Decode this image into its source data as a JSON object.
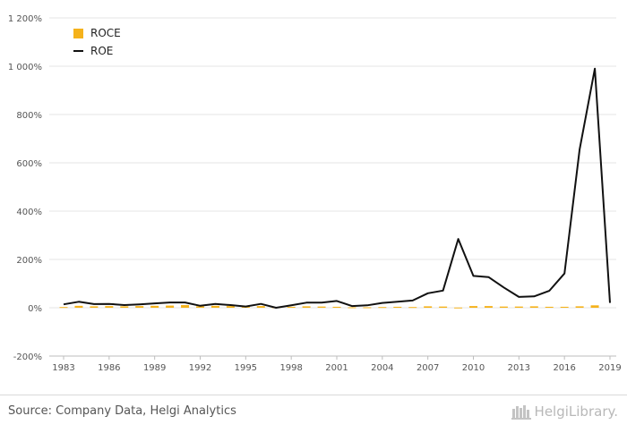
{
  "chart_data": {
    "type": "bar+line",
    "x": [
      "1983",
      "1984",
      "1985",
      "1986",
      "1987",
      "1988",
      "1989",
      "1990",
      "1991",
      "1992",
      "1993",
      "1994",
      "1995",
      "1996",
      "1997",
      "1998",
      "1999",
      "2000",
      "2001",
      "2002",
      "2003",
      "2004",
      "2005",
      "2006",
      "2007",
      "2008",
      "2009",
      "2010",
      "2011",
      "2012",
      "2013",
      "2014",
      "2015",
      "2016",
      "2017",
      "2018",
      "2019"
    ],
    "x_tick_labels": [
      "1983",
      "1986",
      "1989",
      "1992",
      "1995",
      "1998",
      "2001",
      "2004",
      "2007",
      "2010",
      "2013",
      "2016",
      "2019"
    ],
    "y_tick_labels": [
      "1 200%",
      "1 000%",
      "800%",
      "600%",
      "400%",
      "200%",
      "0%",
      "-200%"
    ],
    "ylim": [
      -200,
      1200
    ],
    "y_ticks": [
      -200,
      0,
      200,
      400,
      600,
      800,
      1000,
      1200
    ],
    "grid": true,
    "legend_position": "top-left",
    "series": [
      {
        "name": "ROCE",
        "kind": "bar",
        "color": "#f5b21b",
        "values": [
          3,
          8,
          6,
          7,
          6,
          7,
          8,
          9,
          11,
          6,
          8,
          7,
          5,
          7,
          2,
          4,
          6,
          5,
          4,
          2,
          2,
          3,
          4,
          3,
          6,
          5,
          1,
          7,
          7,
          5,
          5,
          6,
          4,
          4,
          6,
          10,
          0
        ]
      },
      {
        "name": "ROE",
        "kind": "line",
        "color": "#111111",
        "values": [
          14,
          25,
          15,
          16,
          11,
          14,
          18,
          22,
          22,
          8,
          16,
          11,
          5,
          16,
          0,
          10,
          21,
          21,
          28,
          7,
          10,
          20,
          25,
          30,
          60,
          71,
          285,
          132,
          127,
          84,
          45,
          47,
          70,
          142,
          655,
          990,
          20
        ]
      }
    ]
  },
  "footer": {
    "source": "Source: Company Data, Helgi Analytics",
    "brand": "HelgiLibrary."
  }
}
